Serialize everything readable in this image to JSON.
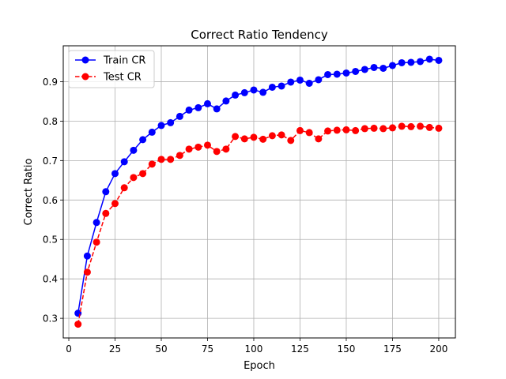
{
  "chart_data": {
    "type": "line",
    "title": "Correct Ratio Tendency",
    "xlabel": "Epoch",
    "ylabel": "Correct Ratio",
    "xlim": [
      -3,
      209
    ],
    "ylim": [
      0.2502,
      0.991
    ],
    "xticks": [
      0,
      25,
      50,
      75,
      100,
      125,
      150,
      175,
      200
    ],
    "yticks": [
      0.3,
      0.4,
      0.5,
      0.6,
      0.7,
      0.8,
      0.9
    ],
    "xtick_labels": [
      "0",
      "25",
      "50",
      "75",
      "100",
      "125",
      "150",
      "175",
      "200"
    ],
    "ytick_labels": [
      "0.3",
      "0.4",
      "0.5",
      "0.6",
      "0.7",
      "0.8",
      "0.9"
    ],
    "grid": true,
    "legend_position": "top-left",
    "x": [
      5,
      10,
      15,
      20,
      25,
      30,
      35,
      40,
      45,
      50,
      55,
      60,
      65,
      70,
      75,
      80,
      85,
      90,
      95,
      100,
      105,
      110,
      115,
      120,
      125,
      130,
      135,
      140,
      145,
      150,
      155,
      160,
      165,
      170,
      175,
      180,
      185,
      190,
      195,
      200
    ],
    "series": [
      {
        "name": "Train CR",
        "color": "#0000ff",
        "line_style": "solid",
        "marker": "circle",
        "values": [
          0.313,
          0.458,
          0.543,
          0.621,
          0.667,
          0.697,
          0.726,
          0.753,
          0.772,
          0.789,
          0.796,
          0.812,
          0.828,
          0.834,
          0.844,
          0.831,
          0.851,
          0.866,
          0.872,
          0.879,
          0.873,
          0.886,
          0.889,
          0.899,
          0.904,
          0.896,
          0.905,
          0.918,
          0.919,
          0.922,
          0.926,
          0.931,
          0.936,
          0.934,
          0.941,
          0.948,
          0.949,
          0.951,
          0.957,
          0.954
        ]
      },
      {
        "name": "Test CR",
        "color": "#ff0000",
        "line_style": "dashed",
        "marker": "circle",
        "values": [
          0.285,
          0.417,
          0.493,
          0.566,
          0.591,
          0.631,
          0.657,
          0.667,
          0.691,
          0.703,
          0.703,
          0.713,
          0.729,
          0.734,
          0.739,
          0.723,
          0.729,
          0.761,
          0.755,
          0.759,
          0.754,
          0.763,
          0.765,
          0.751,
          0.776,
          0.771,
          0.755,
          0.775,
          0.777,
          0.778,
          0.776,
          0.781,
          0.782,
          0.781,
          0.783,
          0.787,
          0.786,
          0.787,
          0.784,
          0.782
        ]
      }
    ]
  }
}
